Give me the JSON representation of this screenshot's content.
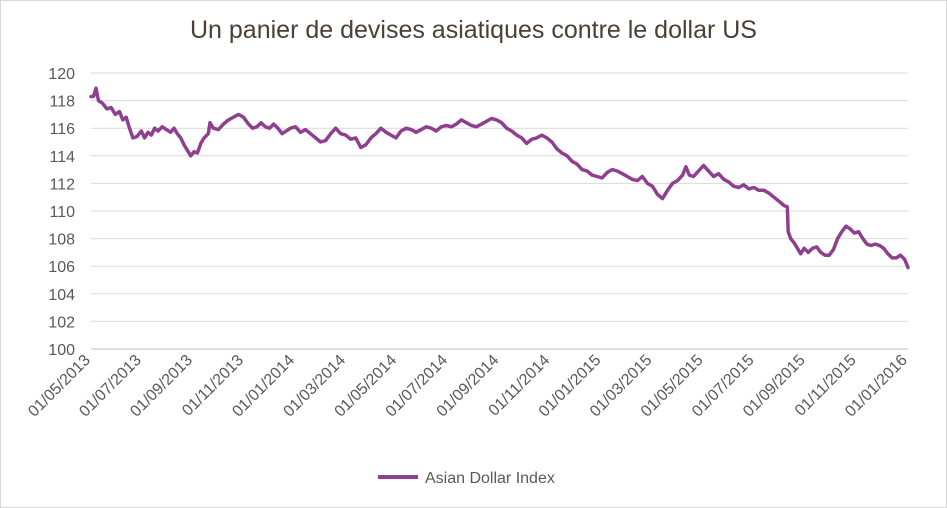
{
  "chart_data": {
    "type": "line",
    "title": "Un panier de devises asiatiques contre le dollar US",
    "xlabel": "",
    "ylabel": "",
    "ylim": [
      100,
      120
    ],
    "yticks": [
      "100",
      "102",
      "104",
      "106",
      "108",
      "110",
      "112",
      "114",
      "116",
      "118",
      "120"
    ],
    "xticks": [
      "01/05/2013",
      "01/07/2013",
      "01/09/2013",
      "01/11/2013",
      "01/01/2014",
      "01/03/2014",
      "01/05/2014",
      "01/07/2014",
      "01/09/2014",
      "01/11/2014",
      "01/01/2015",
      "01/03/2015",
      "01/05/2015",
      "01/07/2015",
      "01/09/2015",
      "01/11/2015",
      "01/01/2016"
    ],
    "xlim": [
      "2013-05-01",
      "2016-01-01"
    ],
    "grid": true,
    "legend_position": "bottom",
    "series": [
      {
        "name": "Asian Dollar Index",
        "color": "#8e3f8f",
        "points": [
          [
            "2013-05-01",
            118.3
          ],
          [
            "2013-05-04",
            118.3
          ],
          [
            "2013-05-07",
            118.9
          ],
          [
            "2013-05-10",
            118.0
          ],
          [
            "2013-05-15",
            117.8
          ],
          [
            "2013-05-20",
            117.4
          ],
          [
            "2013-05-25",
            117.5
          ],
          [
            "2013-05-30",
            117.0
          ],
          [
            "2013-06-04",
            117.2
          ],
          [
            "2013-06-08",
            116.6
          ],
          [
            "2013-06-12",
            116.8
          ],
          [
            "2013-06-16",
            116.0
          ],
          [
            "2013-06-20",
            115.3
          ],
          [
            "2013-06-25",
            115.4
          ],
          [
            "2013-06-30",
            115.8
          ],
          [
            "2013-07-04",
            115.3
          ],
          [
            "2013-07-08",
            115.7
          ],
          [
            "2013-07-12",
            115.5
          ],
          [
            "2013-07-16",
            116.0
          ],
          [
            "2013-07-20",
            115.8
          ],
          [
            "2013-07-25",
            116.1
          ],
          [
            "2013-07-30",
            115.9
          ],
          [
            "2013-08-04",
            115.7
          ],
          [
            "2013-08-08",
            116.0
          ],
          [
            "2013-08-12",
            115.6
          ],
          [
            "2013-08-16",
            115.3
          ],
          [
            "2013-08-20",
            114.8
          ],
          [
            "2013-08-24",
            114.4
          ],
          [
            "2013-08-28",
            114.0
          ],
          [
            "2013-09-01",
            114.3
          ],
          [
            "2013-09-05",
            114.2
          ],
          [
            "2013-09-09",
            114.9
          ],
          [
            "2013-09-13",
            115.3
          ],
          [
            "2013-09-18",
            115.6
          ],
          [
            "2013-09-20",
            116.4
          ],
          [
            "2013-09-24",
            116.0
          ],
          [
            "2013-09-30",
            115.9
          ],
          [
            "2013-10-06",
            116.3
          ],
          [
            "2013-10-12",
            116.6
          ],
          [
            "2013-10-18",
            116.8
          ],
          [
            "2013-10-24",
            117.0
          ],
          [
            "2013-10-30",
            116.8
          ],
          [
            "2013-11-05",
            116.3
          ],
          [
            "2013-11-10",
            116.0
          ],
          [
            "2013-11-15",
            116.1
          ],
          [
            "2013-11-20",
            116.4
          ],
          [
            "2013-11-25",
            116.1
          ],
          [
            "2013-11-30",
            116.0
          ],
          [
            "2013-12-05",
            116.3
          ],
          [
            "2013-12-10",
            116.0
          ],
          [
            "2013-12-15",
            115.6
          ],
          [
            "2013-12-20",
            115.8
          ],
          [
            "2013-12-25",
            116.0
          ],
          [
            "2013-12-31",
            116.1
          ],
          [
            "2014-01-06",
            115.7
          ],
          [
            "2014-01-12",
            115.9
          ],
          [
            "2014-01-18",
            115.6
          ],
          [
            "2014-01-24",
            115.3
          ],
          [
            "2014-01-30",
            115.0
          ],
          [
            "2014-02-05",
            115.1
          ],
          [
            "2014-02-11",
            115.6
          ],
          [
            "2014-02-17",
            116.0
          ],
          [
            "2014-02-23",
            115.6
          ],
          [
            "2014-03-01",
            115.5
          ],
          [
            "2014-03-07",
            115.2
          ],
          [
            "2014-03-13",
            115.3
          ],
          [
            "2014-03-19",
            114.6
          ],
          [
            "2014-03-25",
            114.8
          ],
          [
            "2014-03-31",
            115.3
          ],
          [
            "2014-04-06",
            115.6
          ],
          [
            "2014-04-12",
            116.0
          ],
          [
            "2014-04-18",
            115.7
          ],
          [
            "2014-04-24",
            115.5
          ],
          [
            "2014-04-30",
            115.3
          ],
          [
            "2014-05-06",
            115.8
          ],
          [
            "2014-05-12",
            116.0
          ],
          [
            "2014-05-18",
            115.9
          ],
          [
            "2014-05-24",
            115.7
          ],
          [
            "2014-05-30",
            115.9
          ],
          [
            "2014-06-05",
            116.1
          ],
          [
            "2014-06-11",
            116.0
          ],
          [
            "2014-06-17",
            115.8
          ],
          [
            "2014-06-23",
            116.1
          ],
          [
            "2014-06-29",
            116.2
          ],
          [
            "2014-07-05",
            116.1
          ],
          [
            "2014-07-11",
            116.3
          ],
          [
            "2014-07-17",
            116.6
          ],
          [
            "2014-07-23",
            116.4
          ],
          [
            "2014-07-29",
            116.2
          ],
          [
            "2014-08-04",
            116.1
          ],
          [
            "2014-08-10",
            116.3
          ],
          [
            "2014-08-16",
            116.5
          ],
          [
            "2014-08-22",
            116.7
          ],
          [
            "2014-08-28",
            116.6
          ],
          [
            "2014-09-03",
            116.4
          ],
          [
            "2014-09-09",
            116.0
          ],
          [
            "2014-09-15",
            115.8
          ],
          [
            "2014-09-21",
            115.5
          ],
          [
            "2014-09-27",
            115.3
          ],
          [
            "2014-10-03",
            114.9
          ],
          [
            "2014-10-09",
            115.2
          ],
          [
            "2014-10-15",
            115.3
          ],
          [
            "2014-10-21",
            115.5
          ],
          [
            "2014-10-27",
            115.3
          ],
          [
            "2014-11-02",
            115.0
          ],
          [
            "2014-11-08",
            114.5
          ],
          [
            "2014-11-14",
            114.2
          ],
          [
            "2014-11-20",
            114.0
          ],
          [
            "2014-11-26",
            113.6
          ],
          [
            "2014-12-02",
            113.4
          ],
          [
            "2014-12-08",
            113.0
          ],
          [
            "2014-12-14",
            112.9
          ],
          [
            "2014-12-20",
            112.6
          ],
          [
            "2014-12-26",
            112.5
          ],
          [
            "2015-01-01",
            112.4
          ],
          [
            "2015-01-07",
            112.8
          ],
          [
            "2015-01-13",
            113.0
          ],
          [
            "2015-01-19",
            112.9
          ],
          [
            "2015-01-25",
            112.7
          ],
          [
            "2015-01-31",
            112.5
          ],
          [
            "2015-02-06",
            112.3
          ],
          [
            "2015-02-12",
            112.2
          ],
          [
            "2015-02-18",
            112.5
          ],
          [
            "2015-02-24",
            112.0
          ],
          [
            "2015-03-02",
            111.8
          ],
          [
            "2015-03-08",
            111.2
          ],
          [
            "2015-03-14",
            110.9
          ],
          [
            "2015-03-20",
            111.5
          ],
          [
            "2015-03-26",
            112.0
          ],
          [
            "2015-04-01",
            112.2
          ],
          [
            "2015-04-07",
            112.6
          ],
          [
            "2015-04-11",
            113.2
          ],
          [
            "2015-04-15",
            112.6
          ],
          [
            "2015-04-20",
            112.5
          ],
          [
            "2015-04-26",
            112.9
          ],
          [
            "2015-05-02",
            113.3
          ],
          [
            "2015-05-08",
            112.9
          ],
          [
            "2015-05-14",
            112.5
          ],
          [
            "2015-05-20",
            112.7
          ],
          [
            "2015-05-26",
            112.3
          ],
          [
            "2015-06-01",
            112.1
          ],
          [
            "2015-06-07",
            111.8
          ],
          [
            "2015-06-13",
            111.7
          ],
          [
            "2015-06-19",
            111.9
          ],
          [
            "2015-06-25",
            111.6
          ],
          [
            "2015-07-01",
            111.7
          ],
          [
            "2015-07-07",
            111.5
          ],
          [
            "2015-07-13",
            111.5
          ],
          [
            "2015-07-19",
            111.3
          ],
          [
            "2015-07-25",
            111.0
          ],
          [
            "2015-07-31",
            110.7
          ],
          [
            "2015-08-06",
            110.4
          ],
          [
            "2015-08-10",
            110.3
          ],
          [
            "2015-08-11",
            108.5
          ],
          [
            "2015-08-14",
            108.0
          ],
          [
            "2015-08-18",
            107.7
          ],
          [
            "2015-08-22",
            107.3
          ],
          [
            "2015-08-26",
            106.9
          ],
          [
            "2015-08-30",
            107.3
          ],
          [
            "2015-09-04",
            107.0
          ],
          [
            "2015-09-09",
            107.3
          ],
          [
            "2015-09-14",
            107.4
          ],
          [
            "2015-09-19",
            107.0
          ],
          [
            "2015-09-24",
            106.8
          ],
          [
            "2015-09-29",
            106.8
          ],
          [
            "2015-10-04",
            107.2
          ],
          [
            "2015-10-09",
            108.0
          ],
          [
            "2015-10-14",
            108.5
          ],
          [
            "2015-10-19",
            108.9
          ],
          [
            "2015-10-24",
            108.7
          ],
          [
            "2015-10-29",
            108.4
          ],
          [
            "2015-11-03",
            108.5
          ],
          [
            "2015-11-08",
            108.0
          ],
          [
            "2015-11-13",
            107.6
          ],
          [
            "2015-11-18",
            107.5
          ],
          [
            "2015-11-23",
            107.6
          ],
          [
            "2015-11-28",
            107.5
          ],
          [
            "2015-12-03",
            107.3
          ],
          [
            "2015-12-08",
            106.9
          ],
          [
            "2015-12-13",
            106.6
          ],
          [
            "2015-12-18",
            106.6
          ],
          [
            "2015-12-23",
            106.8
          ],
          [
            "2015-12-28",
            106.5
          ],
          [
            "2016-01-01",
            105.9
          ]
        ]
      }
    ]
  }
}
